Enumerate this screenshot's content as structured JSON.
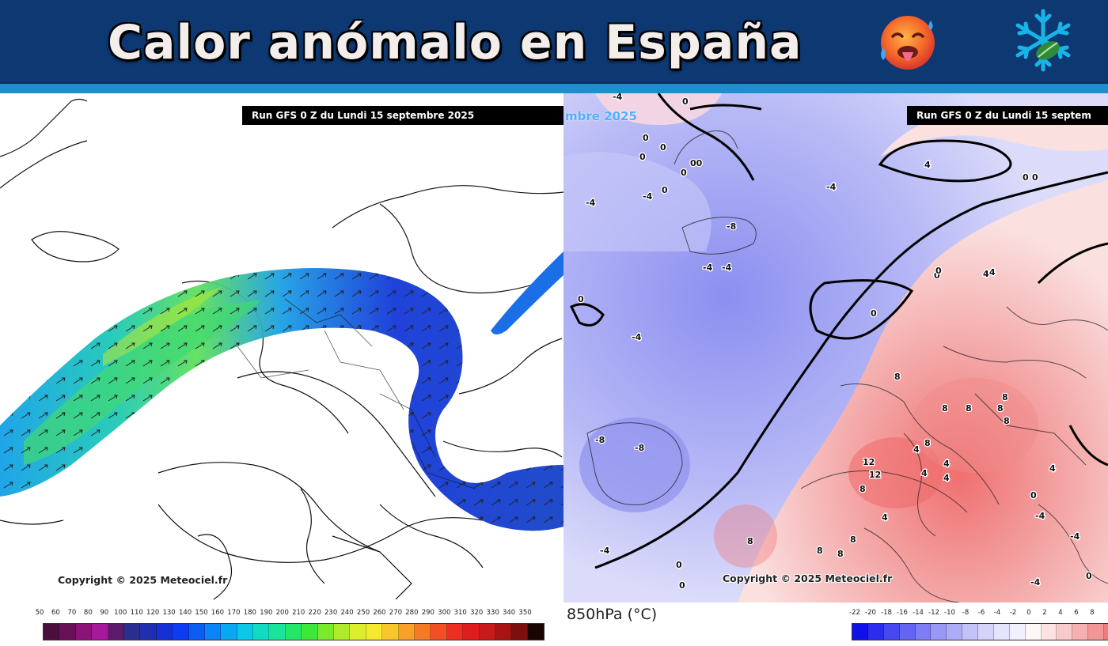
{
  "header": {
    "title": "Calor anómalo en España",
    "icon": "hot-face-emoji",
    "logo": "snowflake-leaf-logo",
    "background_color": "#0d3872",
    "accent_color": "#1e8ecc"
  },
  "left_map": {
    "run_label": "Run GFS 0 Z du Lundi 15 septembre 2025",
    "copyright": "Copyright © 2025 Meteociel.fr",
    "legend": {
      "ticks": [
        "50",
        "60",
        "70",
        "80",
        "90",
        "100",
        "110",
        "120",
        "130",
        "140",
        "150",
        "160",
        "170",
        "180",
        "190",
        "200",
        "210",
        "220",
        "230",
        "240",
        "250",
        "260",
        "270",
        "280",
        "290",
        "300",
        "310",
        "320",
        "330",
        "340",
        "350"
      ],
      "colors": [
        "#4a0f3c",
        "#6a1058",
        "#8c1478",
        "#a8189a",
        "#5c1a6a",
        "#2a2f8e",
        "#1f2fb0",
        "#1430d6",
        "#0d3cf2",
        "#0b5cf4",
        "#0b84f5",
        "#0aa8f2",
        "#0ac8e6",
        "#10dcc4",
        "#18e49a",
        "#22e868",
        "#3ee83a",
        "#7aea2c",
        "#aeec2a",
        "#dcee2c",
        "#f6e82c",
        "#f8c82a",
        "#f8a028",
        "#f67a26",
        "#f25024",
        "#ee2e22",
        "#e01c1c",
        "#c81a1a",
        "#a81414",
        "#7e0f0f",
        "#1a0505"
      ]
    }
  },
  "right_map": {
    "run_label": "Run GFS 0 Z du Lundi 15 septem",
    "run_fragment": "mbre 2025",
    "copyright": "Copyright © 2025 Meteociel.fr",
    "unit_label": "850hPa (°C)",
    "contour_labels": [
      "-4",
      "0",
      "0",
      "0",
      "0",
      "00",
      "0",
      "0",
      "4",
      "-4",
      "-8",
      "-4",
      "-4",
      "-4",
      "0",
      "-4",
      "-4",
      "0",
      "-8",
      "-8",
      "-4",
      "0",
      "4",
      "0",
      "0",
      "4",
      "0",
      "4",
      "8",
      "8",
      "8",
      "8",
      "8",
      "8",
      "12",
      "12",
      "8",
      "4",
      "4",
      "4",
      "4",
      "8",
      "8",
      "8",
      "8",
      "-4",
      "0",
      "0",
      "0",
      "-4",
      "4",
      "4",
      "8",
      "-4",
      "0"
    ],
    "legend": {
      "ticks": [
        "-22",
        "-20",
        "-18",
        "-16",
        "-14",
        "-12",
        "-10",
        "-8",
        "-6",
        "-4",
        "-2",
        "0",
        "2",
        "4",
        "6",
        "8"
      ],
      "colors": [
        "#1010e8",
        "#2c2cee",
        "#4848f0",
        "#6464f2",
        "#7e7ef4",
        "#9898f6",
        "#adadf7",
        "#c2c2f8",
        "#d4d4fa",
        "#e4e4fc",
        "#f0f0fe",
        "#fdf8f8",
        "#fce2e2",
        "#f9caca",
        "#f6b0b0",
        "#f39696",
        "#f07c7c"
      ]
    }
  }
}
